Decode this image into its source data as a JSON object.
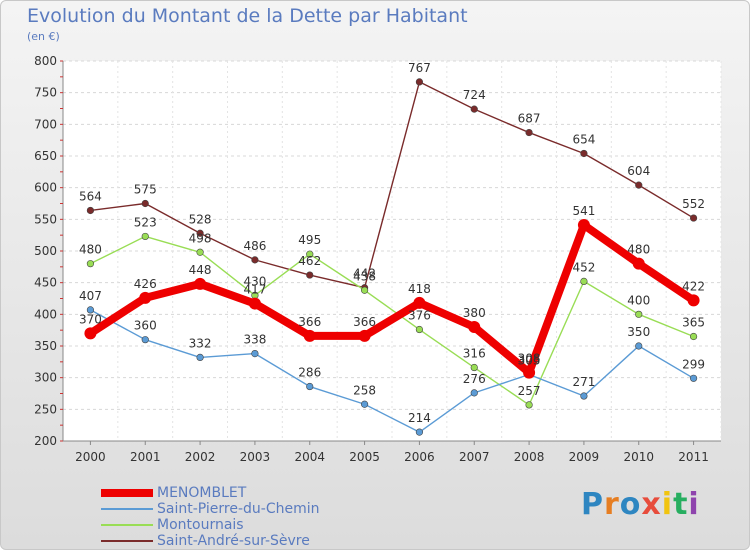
{
  "header": {
    "title": "Evolution du Montant de la Dette par Habitant",
    "subtitle": "(en €)"
  },
  "logo": {
    "text": "Proxiti",
    "letter_colors": [
      "#2e86c1",
      "#e67e22",
      "#2e86c1",
      "#e74c3c",
      "#f1c40f",
      "#27ae60",
      "#8e44ad"
    ]
  },
  "chart_data": {
    "type": "line",
    "x": [
      "2000",
      "2001",
      "2002",
      "2003",
      "2004",
      "2005",
      "2006",
      "2007",
      "2008",
      "2009",
      "2010",
      "2011"
    ],
    "ylim": [
      200,
      800
    ],
    "yticks": [
      200,
      250,
      300,
      350,
      400,
      450,
      500,
      550,
      600,
      650,
      700,
      750,
      800
    ],
    "legend_position": "bottom-left",
    "series": [
      {
        "name": "MENOMBLET",
        "color": "#ee0000",
        "values": [
          370,
          426,
          448,
          417,
          366,
          366,
          418,
          380,
          308,
          541,
          480,
          422
        ],
        "labels": [
          "370",
          "426",
          "448",
          "417",
          "366",
          "366",
          "418",
          "380",
          "308",
          "541",
          "480",
          "422"
        ]
      },
      {
        "name": "Saint-Pierre-du-Chemin",
        "color": "#5b9bd5",
        "values": [
          407,
          360,
          332,
          338,
          286,
          258,
          214,
          276,
          305,
          271,
          350,
          299
        ],
        "labels": [
          "407",
          "360",
          "332",
          "338",
          "286",
          "258",
          "214",
          "276",
          "305",
          "271",
          "350",
          "299"
        ]
      },
      {
        "name": "Montournais",
        "color": "#99dd55",
        "values": [
          480,
          523,
          498,
          430,
          495,
          438,
          376,
          316,
          257,
          452,
          400,
          365
        ],
        "labels": [
          "480",
          "523",
          "498",
          "430",
          "495",
          "438",
          "376",
          "316",
          "257",
          "452",
          "400",
          "365"
        ]
      },
      {
        "name": "Saint-André-sur-Sèvre",
        "color": "#7a2b2b",
        "values": [
          564,
          575,
          528,
          486,
          462,
          442,
          767,
          724,
          687,
          654,
          604,
          552
        ],
        "labels": [
          "564",
          "575",
          "528",
          "486",
          "462",
          "442",
          "767",
          "724",
          "687",
          "654",
          "604",
          "552"
        ]
      }
    ]
  }
}
